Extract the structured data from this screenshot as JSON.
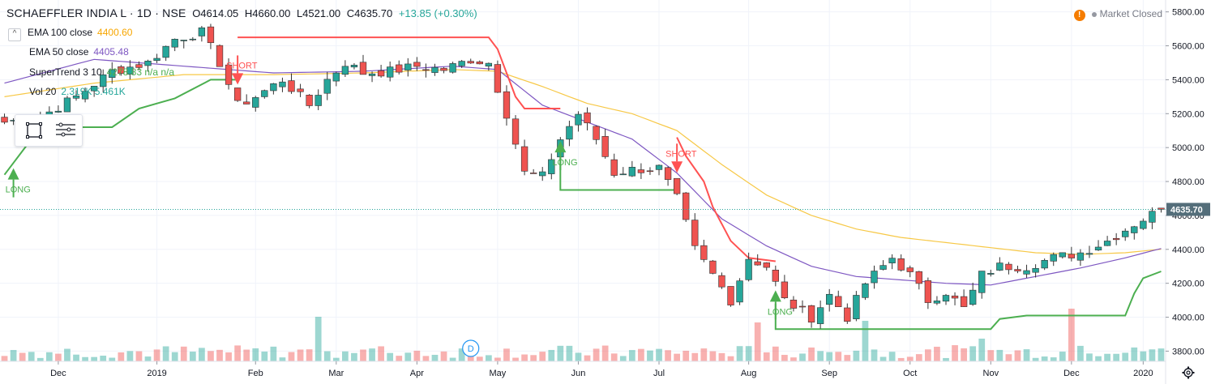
{
  "header": {
    "symbol": "SCHAEFFLER INDIA L · 1D · NSE",
    "open": "O4614.05",
    "high": "H4660.00",
    "low": "L4521.00",
    "close": "C4635.70",
    "change": "+13.85 (+0.30%)"
  },
  "legend": {
    "ema100_label": "EMA 100 close",
    "ema100_value": "4400.60",
    "ema50_label": "EMA 50 close",
    "ema50_value": "4405.48",
    "supertrend_label": "SuperTrend 3 10",
    "supertrend_value": "4278.83 n/a n/a",
    "vol_label": "Vol 20",
    "vol_value": "2.319K 5.461K"
  },
  "market_status": "Market Closed",
  "last_price_label": "4635.70",
  "event_marker": "D",
  "colors": {
    "up": "#26a69a",
    "down": "#ef5350",
    "ema100": "#f7c846",
    "ema50": "#7e57c2",
    "st_up": "#4caf50",
    "st_down": "#ff5252",
    "price_tag": "#546e7a"
  },
  "chart_data": {
    "type": "candlestick",
    "price_axis": [
      5800,
      5600,
      5400,
      5200,
      5000,
      4800,
      4600,
      4400,
      4200,
      4000,
      3800
    ],
    "price_axis_labels": [
      "5800.00",
      "5600.00",
      "5400.00",
      "5200.00",
      "5000.00",
      "4800.00",
      "4600.00",
      "4400.00",
      "4200.00",
      "4000.00",
      "3800.00"
    ],
    "y_range": [
      3740,
      5870
    ],
    "time_axis_labels": [
      "Dec",
      "2019",
      "Feb",
      "Mar",
      "Apr",
      "May",
      "Jun",
      "Jul",
      "Aug",
      "Sep",
      "Oct",
      "Nov",
      "Dec",
      "2020"
    ],
    "time_axis_index": [
      6,
      17,
      28,
      37,
      46,
      55,
      64,
      73,
      83,
      92,
      101,
      110,
      119,
      127
    ],
    "n_candles": 130,
    "close_key": [
      [
        0,
        5150
      ],
      [
        4,
        5180
      ],
      [
        8,
        5300
      ],
      [
        12,
        5450
      ],
      [
        16,
        5500
      ],
      [
        19,
        5640
      ],
      [
        22,
        5680
      ],
      [
        24,
        5500
      ],
      [
        26,
        5250
      ],
      [
        28,
        5300
      ],
      [
        31,
        5400
      ],
      [
        34,
        5250
      ],
      [
        36,
        5400
      ],
      [
        38,
        5500
      ],
      [
        40,
        5440
      ],
      [
        43,
        5450
      ],
      [
        46,
        5480
      ],
      [
        49,
        5460
      ],
      [
        52,
        5520
      ],
      [
        54,
        5500
      ],
      [
        56,
        5200
      ],
      [
        58,
        4850
      ],
      [
        60,
        4830
      ],
      [
        62,
        5050
      ],
      [
        64,
        5200
      ],
      [
        66,
        5050
      ],
      [
        68,
        4850
      ],
      [
        70,
        4870
      ],
      [
        73,
        4880
      ],
      [
        75,
        4700
      ],
      [
        77,
        4400
      ],
      [
        79,
        4250
      ],
      [
        81,
        4100
      ],
      [
        83,
        4350
      ],
      [
        85,
        4300
      ],
      [
        87,
        4100
      ],
      [
        90,
        4000
      ],
      [
        92,
        4130
      ],
      [
        94,
        4000
      ],
      [
        96,
        4200
      ],
      [
        99,
        4350
      ],
      [
        101,
        4250
      ],
      [
        103,
        4100
      ],
      [
        105,
        4150
      ],
      [
        107,
        4050
      ],
      [
        109,
        4250
      ],
      [
        111,
        4300
      ],
      [
        114,
        4300
      ],
      [
        117,
        4350
      ],
      [
        120,
        4380
      ],
      [
        123,
        4450
      ],
      [
        126,
        4550
      ],
      [
        129,
        4636
      ]
    ],
    "ema100_key": [
      [
        0,
        5300
      ],
      [
        10,
        5380
      ],
      [
        20,
        5430
      ],
      [
        30,
        5430
      ],
      [
        40,
        5440
      ],
      [
        50,
        5460
      ],
      [
        55,
        5450
      ],
      [
        60,
        5360
      ],
      [
        65,
        5260
      ],
      [
        70,
        5200
      ],
      [
        75,
        5100
      ],
      [
        80,
        4900
      ],
      [
        85,
        4720
      ],
      [
        90,
        4600
      ],
      [
        95,
        4520
      ],
      [
        100,
        4470
      ],
      [
        105,
        4440
      ],
      [
        110,
        4410
      ],
      [
        115,
        4380
      ],
      [
        120,
        4370
      ],
      [
        125,
        4380
      ],
      [
        129,
        4401
      ]
    ],
    "ema50_key": [
      [
        0,
        5380
      ],
      [
        10,
        5520
      ],
      [
        20,
        5480
      ],
      [
        30,
        5440
      ],
      [
        40,
        5450
      ],
      [
        50,
        5480
      ],
      [
        55,
        5460
      ],
      [
        60,
        5250
      ],
      [
        65,
        5150
      ],
      [
        70,
        5050
      ],
      [
        75,
        4850
      ],
      [
        80,
        4580
      ],
      [
        85,
        4420
      ],
      [
        90,
        4300
      ],
      [
        95,
        4240
      ],
      [
        100,
        4220
      ],
      [
        105,
        4200
      ],
      [
        110,
        4190
      ],
      [
        115,
        4240
      ],
      [
        120,
        4290
      ],
      [
        125,
        4350
      ],
      [
        129,
        4405
      ]
    ],
    "supertrend": [
      {
        "dir": "up",
        "pts": [
          [
            0,
            4840
          ],
          [
            2,
            4980
          ],
          [
            4,
            5120
          ],
          [
            12,
            5120
          ],
          [
            15,
            5230
          ],
          [
            19,
            5290
          ],
          [
            23,
            5400
          ],
          [
            26,
            5400
          ]
        ]
      },
      {
        "dir": "down",
        "pts": [
          [
            26,
            5650
          ],
          [
            54,
            5650
          ],
          [
            55,
            5580
          ],
          [
            57,
            5300
          ],
          [
            58,
            5230
          ],
          [
            59,
            5230
          ],
          [
            62,
            5230
          ]
        ]
      },
      {
        "dir": "up",
        "pts": [
          [
            62,
            4990
          ],
          [
            62,
            4750
          ],
          [
            75,
            4750
          ]
        ]
      },
      {
        "dir": "down",
        "pts": [
          [
            75,
            5060
          ],
          [
            76,
            4950
          ],
          [
            78,
            4800
          ],
          [
            79,
            4650
          ],
          [
            81,
            4450
          ],
          [
            83,
            4350
          ],
          [
            86,
            4330
          ]
        ]
      },
      {
        "dir": "up",
        "pts": [
          [
            86,
            4080
          ],
          [
            86,
            3930
          ],
          [
            110,
            3930
          ],
          [
            111,
            3990
          ],
          [
            114,
            4010
          ],
          [
            125,
            4010
          ],
          [
            126,
            4140
          ],
          [
            127,
            4230
          ],
          [
            129,
            4270
          ]
        ]
      }
    ],
    "signals": [
      {
        "type": "LONG",
        "index": 1,
        "price": 4850
      },
      {
        "type": "SHORT",
        "index": 26,
        "price": 5400
      },
      {
        "type": "LONG",
        "index": 62,
        "price": 5010
      },
      {
        "type": "SHORT",
        "index": 75,
        "price": 4880
      },
      {
        "type": "LONG",
        "index": 86,
        "price": 4130
      }
    ],
    "volume_spikes": [
      [
        35,
        0.55
      ],
      [
        84,
        0.48
      ],
      [
        96,
        0.5
      ],
      [
        109,
        0.28
      ],
      [
        119,
        0.65
      ]
    ],
    "last_price": 4635.7
  }
}
